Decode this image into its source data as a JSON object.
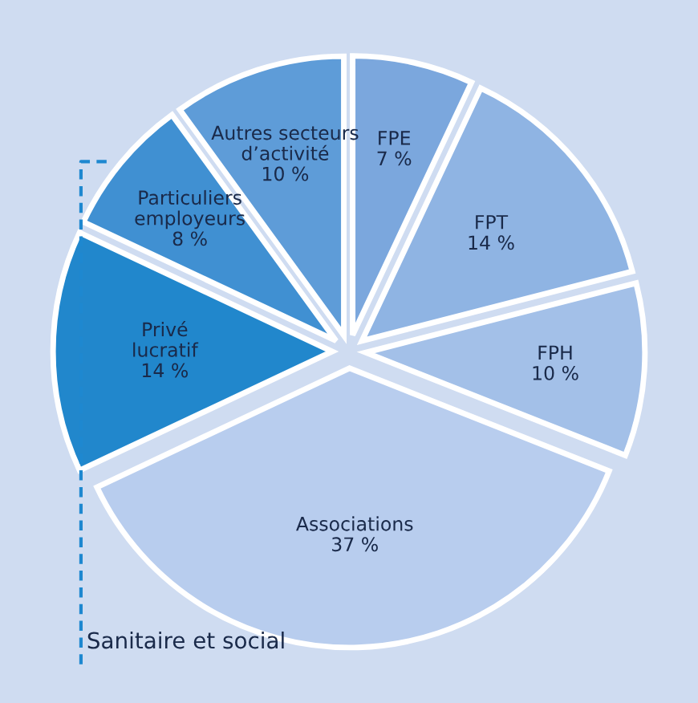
{
  "chart_data": {
    "type": "pie",
    "categories": [
      "FPE",
      "FPT",
      "FPH",
      "Associations",
      "Privé lucratif",
      "Particuliers employeurs",
      "Autres secteurs d’activité"
    ],
    "values": [
      7,
      14,
      10,
      37,
      14,
      8,
      10
    ],
    "value_labels": [
      "7 %",
      "14 %",
      "10 %",
      "37 %",
      "14 %",
      "8 %",
      "10 %"
    ],
    "colors": [
      "#7ba7dd",
      "#8fb4e3",
      "#a3c0e8",
      "#b8cdee",
      "#2187cc",
      "#4090d2",
      "#5e9cd8"
    ],
    "annotations": [
      "Sanitaire et social"
    ]
  }
}
